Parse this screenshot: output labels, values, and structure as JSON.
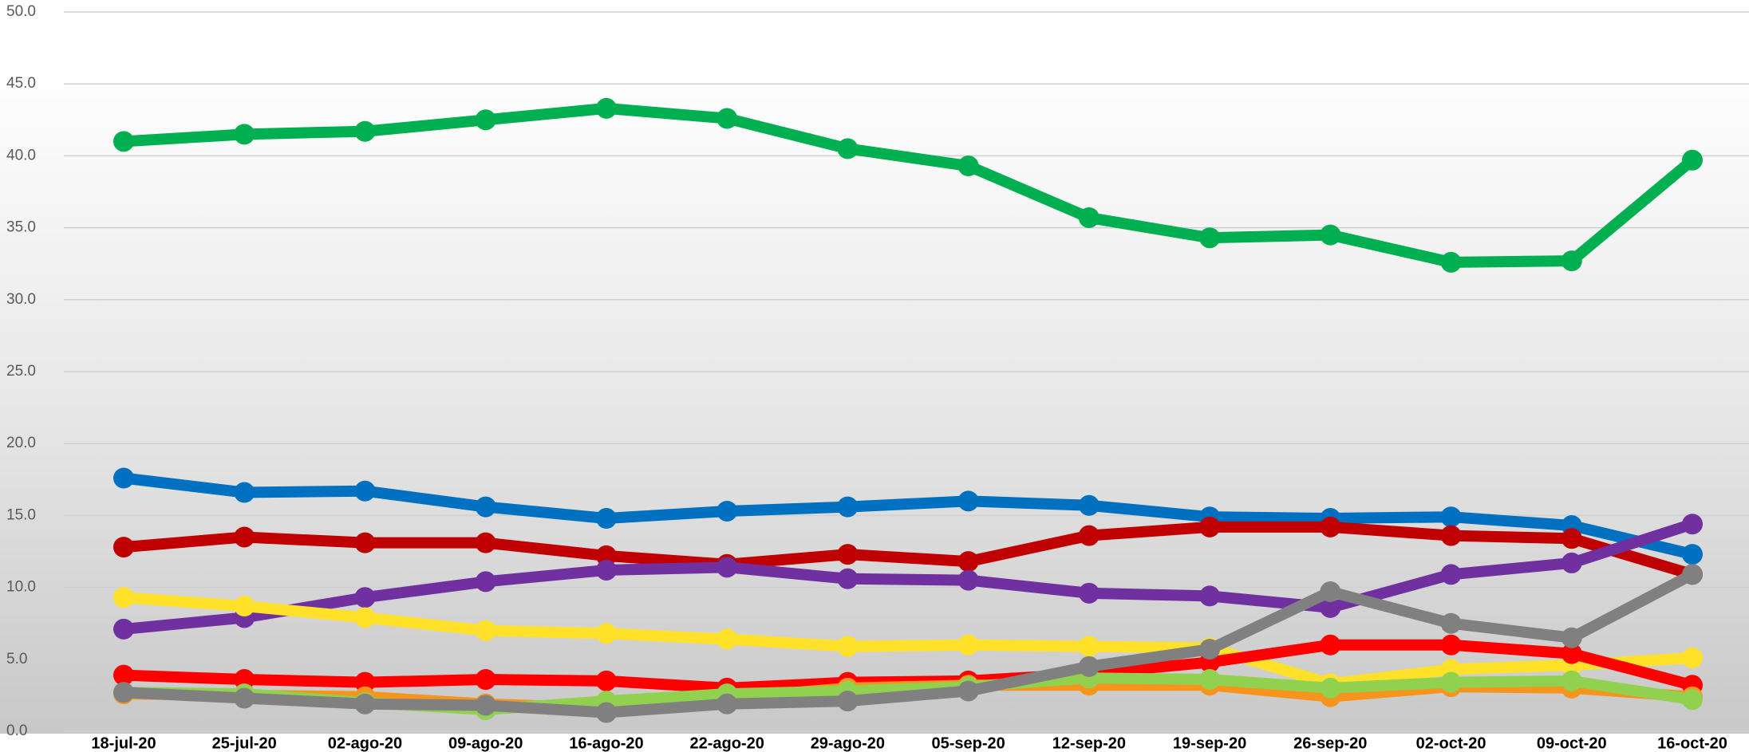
{
  "chart_data": {
    "type": "line",
    "categories": [
      "18-jul-20",
      "25-jul-20",
      "02-ago-20",
      "09-ago-20",
      "16-ago-20",
      "22-ago-20",
      "29-ago-20",
      "05-sep-20",
      "12-sep-20",
      "19-sep-20",
      "26-sep-20",
      "02-oct-20",
      "09-oct-20",
      "16-oct-20"
    ],
    "ylim": [
      0,
      50
    ],
    "yticks": [
      {
        "value": 0,
        "label": "0.0"
      },
      {
        "value": 5,
        "label": "5.0"
      },
      {
        "value": 10,
        "label": "10.0"
      },
      {
        "value": 15,
        "label": "15.0"
      },
      {
        "value": 20,
        "label": "20.0"
      },
      {
        "value": 25,
        "label": "25.0"
      },
      {
        "value": 30,
        "label": "30.0"
      },
      {
        "value": 35,
        "label": "35.0"
      },
      {
        "value": 40,
        "label": "40.0"
      },
      {
        "value": 45,
        "label": "45.0"
      },
      {
        "value": 50,
        "label": "50.0"
      }
    ],
    "grid": true,
    "series": [
      {
        "color": "#00b050",
        "values": [
          41.0,
          41.5,
          41.7,
          42.5,
          43.3,
          42.6,
          40.5,
          39.3,
          35.7,
          34.3,
          34.5,
          32.6,
          32.7,
          39.7
        ]
      },
      {
        "color": "#0070c0",
        "values": [
          17.6,
          16.6,
          16.7,
          15.6,
          14.8,
          15.3,
          15.6,
          16.0,
          15.7,
          14.9,
          14.8,
          14.9,
          14.3,
          12.3
        ]
      },
      {
        "color": "#c00000",
        "values": [
          12.8,
          13.5,
          13.1,
          13.1,
          12.2,
          11.6,
          12.3,
          11.8,
          13.6,
          14.2,
          14.2,
          13.6,
          13.4,
          10.9
        ]
      },
      {
        "color": "#7030a0",
        "values": [
          7.1,
          7.9,
          9.3,
          10.4,
          11.2,
          11.4,
          10.6,
          10.5,
          9.6,
          9.4,
          8.6,
          10.9,
          11.7,
          14.4
        ]
      },
      {
        "color": "#ffe12a",
        "values": [
          9.3,
          8.7,
          7.9,
          7.0,
          6.8,
          6.4,
          5.9,
          6.0,
          5.9,
          5.8,
          3.3,
          4.3,
          4.6,
          5.1
        ]
      },
      {
        "color": "#ff0000",
        "values": [
          3.9,
          3.6,
          3.4,
          3.6,
          3.5,
          3.0,
          3.4,
          3.5,
          4.0,
          4.8,
          6.0,
          6.0,
          5.4,
          3.2
        ]
      },
      {
        "color": "#f7941d",
        "values": [
          2.6,
          2.5,
          2.4,
          1.9,
          1.6,
          2.3,
          3.0,
          3.2,
          3.2,
          3.2,
          2.4,
          3.1,
          3.0,
          2.4
        ]
      },
      {
        "color": "#92d050",
        "values": [
          2.7,
          2.6,
          2.0,
          1.5,
          2.1,
          2.6,
          2.8,
          3.1,
          3.7,
          3.6,
          3.0,
          3.4,
          3.5,
          2.2
        ]
      },
      {
        "color": "#808080",
        "values": [
          2.7,
          2.3,
          1.9,
          1.8,
          1.3,
          1.9,
          2.1,
          2.8,
          4.5,
          5.7,
          9.7,
          7.5,
          6.5,
          10.9
        ]
      }
    ]
  }
}
